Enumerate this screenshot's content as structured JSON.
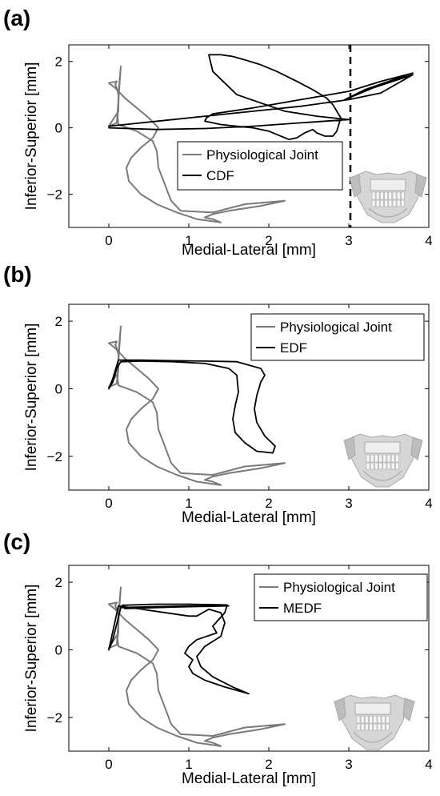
{
  "colors": {
    "physiological": "#7a7a7a",
    "device": "#000000",
    "frame": "#000000"
  },
  "chart_data": [
    {
      "panel_label": "(a)",
      "type": "line",
      "xlabel": "Medial-Lateral [mm]",
      "ylabel": "Inferior-Superior [mm]",
      "xlim": [
        -0.5,
        4
      ],
      "ylim": [
        -3,
        2.5
      ],
      "xticks": [
        "0",
        "1",
        "2",
        "3",
        "4"
      ],
      "yticks": [
        "2",
        "0",
        "−2"
      ],
      "legend_position": "center-right",
      "legend": [
        "Physiological Joint",
        "CDF"
      ],
      "vline_x": 3.02,
      "series": [
        {
          "name": "Physiological Joint",
          "x": [
            0.0,
            0.1,
            0.15,
            0.13,
            0.12,
            0.11,
            0.12,
            0.35,
            0.55,
            0.6,
            0.62,
            0.7,
            0.78,
            0.9,
            1.3,
            1.7,
            2.2,
            1.9,
            1.5,
            1.3,
            1.2,
            1.3,
            1.4,
            1.1,
            0.85,
            0.6,
            0.4,
            0.25,
            0.22,
            0.28,
            0.4,
            0.55,
            0.62,
            0.5,
            0.35,
            0.2,
            0.08,
            0.0,
            0.1,
            0.08,
            0.1,
            0.12,
            0.12,
            0.0
          ],
          "y": [
            0.05,
            0.15,
            1.85,
            1.3,
            0.7,
            0.3,
            0.1,
            -0.1,
            -0.4,
            -0.7,
            -1.2,
            -1.7,
            -2.2,
            -2.5,
            -2.55,
            -2.3,
            -2.2,
            -2.35,
            -2.5,
            -2.6,
            -2.7,
            -2.75,
            -2.85,
            -2.75,
            -2.55,
            -2.3,
            -2.0,
            -1.6,
            -1.2,
            -0.9,
            -0.6,
            -0.3,
            0.0,
            0.3,
            0.6,
            0.9,
            1.2,
            1.35,
            1.4,
            1.3,
            1.2,
            1.0,
            0.5,
            0.05
          ]
        },
        {
          "name": "CDF",
          "x": [
            0.0,
            0.8,
            1.6,
            2.4,
            3.0,
            3.4,
            3.8,
            3.3,
            2.95,
            3.2,
            3.8,
            3.4,
            3.0,
            2.4,
            1.8,
            1.3,
            1.22,
            1.2,
            1.3,
            1.4,
            1.6,
            1.8,
            2.0,
            2.1,
            2.2,
            2.25,
            2.35,
            2.45,
            2.55,
            2.6,
            2.7,
            2.8,
            2.85,
            2.9,
            2.85,
            2.8,
            2.72,
            2.55,
            2.35,
            2.1,
            1.9,
            1.7,
            1.55,
            1.4,
            1.3,
            1.25,
            1.3,
            1.6,
            2.2,
            2.6,
            3.0,
            2.4,
            1.8,
            1.2,
            0.6,
            0.0
          ],
          "y": [
            0.05,
            0.25,
            0.45,
            0.65,
            0.85,
            1.05,
            1.6,
            1.2,
            0.85,
            1.15,
            1.65,
            1.4,
            1.1,
            0.85,
            0.6,
            0.42,
            0.3,
            0.2,
            0.15,
            0.1,
            0.05,
            0.0,
            -0.1,
            -0.2,
            -0.3,
            -0.35,
            -0.3,
            -0.15,
            -0.05,
            -0.15,
            -0.25,
            -0.25,
            -0.1,
            0.3,
            0.5,
            0.7,
            0.9,
            1.15,
            1.4,
            1.7,
            1.9,
            2.05,
            2.15,
            2.2,
            2.2,
            2.2,
            1.7,
            1.0,
            0.5,
            0.35,
            0.25,
            0.15,
            0.05,
            -0.02,
            -0.05,
            0.0
          ]
        }
      ]
    },
    {
      "panel_label": "(b)",
      "type": "line",
      "xlabel": "Medial-Lateral [mm]",
      "ylabel": "Inferior-Superior [mm]",
      "xlim": [
        -0.5,
        4
      ],
      "ylim": [
        -3,
        2.5
      ],
      "xticks": [
        "0",
        "1",
        "2",
        "3",
        "4"
      ],
      "yticks": [
        "2",
        "0",
        "−2"
      ],
      "legend_position": "top-right",
      "legend": [
        "Physiological Joint",
        "EDF"
      ],
      "series": [
        {
          "name": "Physiological Joint",
          "x": [
            0.0,
            0.1,
            0.15,
            0.13,
            0.12,
            0.11,
            0.12,
            0.35,
            0.55,
            0.6,
            0.62,
            0.7,
            0.78,
            0.9,
            1.3,
            1.7,
            2.2,
            1.9,
            1.5,
            1.3,
            1.2,
            1.3,
            1.4,
            1.1,
            0.85,
            0.6,
            0.4,
            0.25,
            0.22,
            0.28,
            0.4,
            0.55,
            0.62,
            0.5,
            0.35,
            0.2,
            0.08,
            0.0,
            0.1,
            0.08,
            0.1,
            0.12,
            0.12,
            0.0
          ],
          "y": [
            0.05,
            0.15,
            1.85,
            1.3,
            0.7,
            0.3,
            0.1,
            -0.1,
            -0.4,
            -0.7,
            -1.2,
            -1.7,
            -2.2,
            -2.5,
            -2.55,
            -2.3,
            -2.2,
            -2.35,
            -2.5,
            -2.6,
            -2.7,
            -2.75,
            -2.85,
            -2.75,
            -2.55,
            -2.3,
            -2.0,
            -1.6,
            -1.2,
            -0.9,
            -0.6,
            -0.3,
            0.0,
            0.3,
            0.6,
            0.9,
            1.2,
            1.35,
            1.4,
            1.3,
            1.2,
            1.0,
            0.5,
            0.05
          ]
        },
        {
          "name": "EDF",
          "x": [
            0.0,
            0.05,
            0.12,
            0.4,
            0.8,
            1.2,
            1.6,
            1.9,
            1.95,
            1.9,
            1.85,
            1.82,
            1.85,
            1.95,
            2.08,
            2.05,
            1.85,
            1.7,
            1.58,
            1.55,
            1.58,
            1.62,
            1.6,
            1.5,
            1.2,
            0.8,
            0.4,
            0.15,
            0.1,
            0.05,
            0.0
          ],
          "y": [
            0.0,
            0.3,
            0.85,
            0.85,
            0.83,
            0.82,
            0.8,
            0.6,
            0.4,
            0.2,
            -0.2,
            -0.6,
            -1.0,
            -1.4,
            -1.7,
            -1.9,
            -1.85,
            -1.6,
            -1.3,
            -0.9,
            -0.5,
            -0.1,
            0.4,
            0.6,
            0.75,
            0.8,
            0.82,
            0.8,
            0.6,
            0.2,
            0.0
          ]
        }
      ]
    },
    {
      "panel_label": "(c)",
      "type": "line",
      "xlabel": "Medial-Lateral [mm]",
      "ylabel": "Inferior-Superior [mm]",
      "xlim": [
        -0.5,
        4
      ],
      "ylim": [
        -3,
        2.5
      ],
      "xticks": [
        "0",
        "1",
        "2",
        "3",
        "4"
      ],
      "yticks": [
        "2",
        "0",
        "−2"
      ],
      "legend_position": "top-right",
      "legend": [
        "Physiological Joint",
        "MEDF"
      ],
      "series": [
        {
          "name": "Physiological Joint",
          "x": [
            0.0,
            0.1,
            0.15,
            0.13,
            0.12,
            0.11,
            0.12,
            0.35,
            0.55,
            0.6,
            0.62,
            0.7,
            0.78,
            0.9,
            1.3,
            1.7,
            2.2,
            1.9,
            1.5,
            1.3,
            1.2,
            1.3,
            1.4,
            1.1,
            0.85,
            0.6,
            0.4,
            0.25,
            0.22,
            0.28,
            0.4,
            0.55,
            0.62,
            0.5,
            0.35,
            0.2,
            0.08,
            0.0,
            0.1,
            0.08,
            0.1,
            0.12,
            0.12,
            0.0
          ],
          "y": [
            0.05,
            0.15,
            1.85,
            1.3,
            0.7,
            0.3,
            0.1,
            -0.1,
            -0.4,
            -0.7,
            -1.2,
            -1.7,
            -2.2,
            -2.5,
            -2.55,
            -2.3,
            -2.2,
            -2.35,
            -2.5,
            -2.6,
            -2.7,
            -2.75,
            -2.85,
            -2.75,
            -2.55,
            -2.3,
            -2.0,
            -1.6,
            -1.2,
            -0.9,
            -0.6,
            -0.3,
            0.0,
            0.3,
            0.6,
            0.9,
            1.2,
            1.35,
            1.4,
            1.3,
            1.2,
            1.0,
            0.5,
            0.05
          ]
        },
        {
          "name": "MEDF",
          "x": [
            0.0,
            0.05,
            0.15,
            0.6,
            1.0,
            1.5,
            0.9,
            0.6,
            0.2,
            0.17,
            0.6,
            1.0,
            1.48,
            1.45,
            1.3,
            1.35,
            1.1,
            1.0,
            0.95,
            1.05,
            1.0,
            1.05,
            1.2,
            1.45,
            1.75,
            1.55,
            1.3,
            1.15,
            1.1,
            1.2,
            1.4,
            1.45,
            1.4,
            1.25,
            1.1,
            1.0,
            0.12,
            0.0
          ],
          "y": [
            0.0,
            0.3,
            1.25,
            1.28,
            1.3,
            1.3,
            1.27,
            1.25,
            1.22,
            1.32,
            1.35,
            1.35,
            1.33,
            1.1,
            0.7,
            0.5,
            0.3,
            0.1,
            -0.1,
            -0.3,
            -0.5,
            -0.7,
            -0.9,
            -1.1,
            -1.3,
            -1.1,
            -0.8,
            -0.5,
            -0.2,
            0.1,
            0.4,
            0.8,
            1.1,
            1.2,
            1.0,
            1.0,
            1.3,
            0.0
          ]
        }
      ]
    }
  ]
}
